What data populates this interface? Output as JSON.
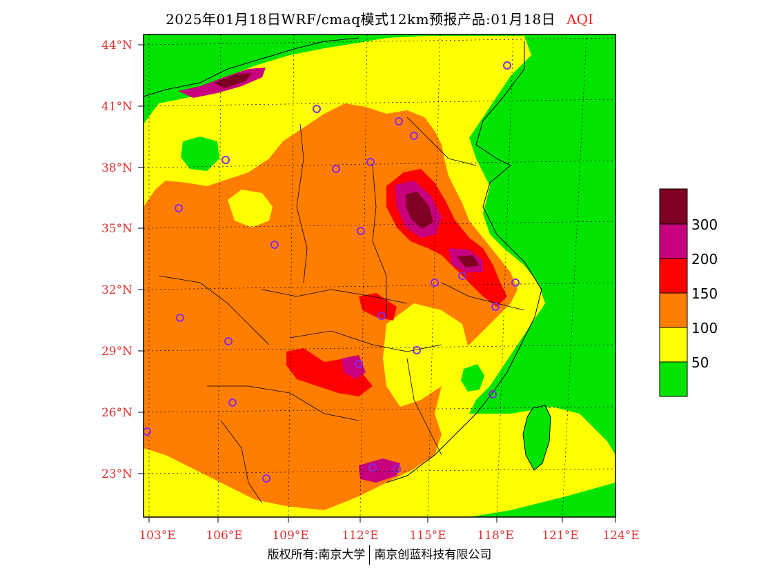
{
  "title": "2025年01月18日WRF/cmaq模式12km预报产品:01月18日",
  "title_tag": "AQI",
  "footer": {
    "left": "版权所有:南京大学",
    "right": "南京创蓝科技有限公司"
  },
  "lat_ticks": [
    "44°N",
    "41°N",
    "38°N",
    "35°N",
    "32°N",
    "29°N",
    "26°N",
    "23°N"
  ],
  "lon_ticks": [
    "103°E",
    "106°E",
    "109°E",
    "112°E",
    "115°E",
    "118°E",
    "121°E",
    "124°E"
  ],
  "legend": {
    "colors": [
      "#00e400",
      "#ffff00",
      "#ff7e00",
      "#ff0000",
      "#c8007d",
      "#7e0023"
    ],
    "labels": [
      "50",
      "100",
      "150",
      "200",
      "300"
    ]
  }
}
